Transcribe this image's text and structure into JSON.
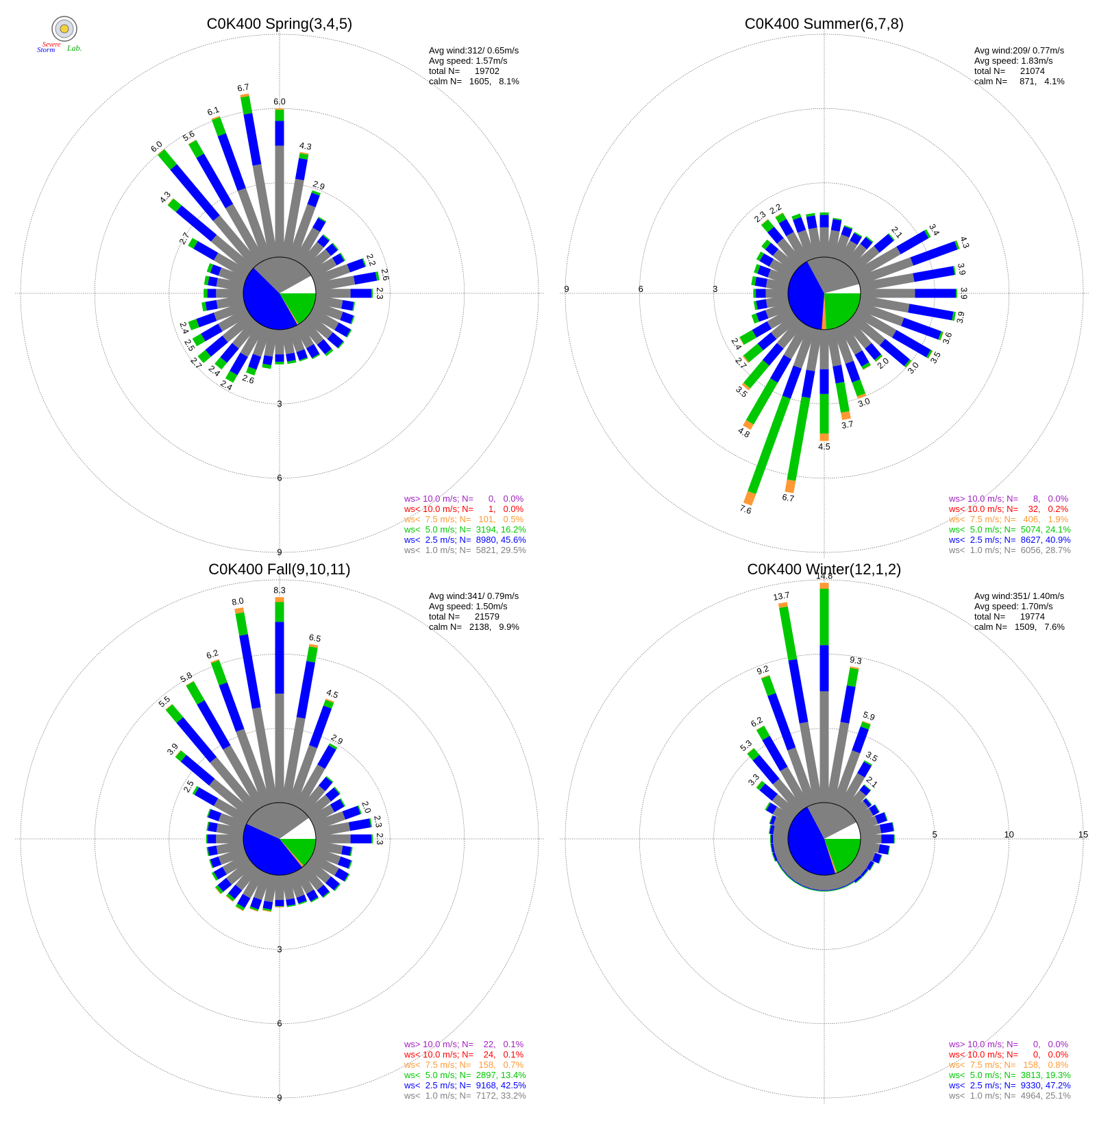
{
  "colors": {
    "calm": "#808080",
    "lt1": "#808080",
    "lt2_5": "#0000ff",
    "lt5": "#00c800",
    "lt7_5": "#ff9933",
    "lt10": "#ff0000",
    "gt10": "#a020c0",
    "calm_fill": "#ffffff"
  },
  "logo": {
    "text_1": "Severe",
    "text_2": "Storm",
    "text_3": "Lab.",
    "icon": "emblem-icon"
  },
  "chart_data": [
    {
      "type": "windrose",
      "title": "C0K400 Spring(3,4,5)",
      "stats": [
        "Avg wind:312/ 0.65m/s",
        "Avg speed: 1.57m/s",
        "total N=      19702",
        "calm N=   1605,   8.1%"
      ],
      "rmax": 9,
      "ring_values": [
        3,
        6,
        9
      ],
      "ring_labels": [
        "3",
        "6",
        "9"
      ],
      "ring_label_side": "south",
      "pie_fractions": {
        "lt1": 0.295,
        "lt2_5": 0.456,
        "lt5": 0.162,
        "lt7_5": 0.005,
        "lt10": 0.0005,
        "gt10": 0.0,
        "calm": 0.081
      },
      "directions_deg": [
        0,
        10,
        20,
        30,
        40,
        50,
        60,
        70,
        80,
        90,
        100,
        110,
        120,
        130,
        140,
        150,
        160,
        170,
        180,
        190,
        200,
        210,
        220,
        230,
        240,
        250,
        260,
        270,
        280,
        290,
        300,
        310,
        320,
        330,
        340,
        350
      ],
      "totals": [
        6.0,
        4.3,
        2.9,
        2.0,
        1.5,
        1.5,
        1.5,
        2.2,
        2.6,
        2.3,
        1.6,
        1.7,
        1.8,
        1.8,
        1.7,
        1.5,
        1.4,
        1.4,
        1.4,
        1.6,
        2.0,
        2.6,
        2.4,
        2.7,
        2.5,
        2.4,
        1.7,
        1.6,
        1.6,
        1.6,
        2.7,
        4.3,
        6.0,
        5.6,
        6.1,
        6.7
      ],
      "lt1": [
        4.5,
        3.2,
        2.3,
        1.5,
        1.1,
        1.1,
        1.1,
        1.5,
        1.6,
        1.4,
        1.1,
        1.2,
        1.2,
        1.2,
        1.1,
        1.0,
        1.0,
        1.0,
        1.0,
        1.1,
        1.2,
        1.4,
        1.3,
        1.4,
        1.3,
        1.3,
        1.1,
        1.1,
        1.1,
        1.1,
        1.5,
        2.0,
        2.5,
        2.6,
        3.0,
        3.8
      ],
      "lt2_5": [
        5.5,
        4.05,
        2.8,
        1.95,
        1.45,
        1.45,
        1.45,
        2.15,
        2.5,
        2.25,
        1.55,
        1.65,
        1.75,
        1.75,
        1.6,
        1.45,
        1.35,
        1.3,
        1.3,
        1.45,
        1.75,
        2.25,
        2.05,
        2.3,
        2.1,
        2.05,
        1.55,
        1.45,
        1.45,
        1.45,
        2.45,
        3.85,
        5.2,
        4.95,
        5.35,
        5.9
      ],
      "lt5": [
        5.95,
        4.25,
        2.9,
        2.0,
        1.5,
        1.5,
        1.5,
        2.2,
        2.6,
        2.3,
        1.6,
        1.7,
        1.8,
        1.8,
        1.7,
        1.5,
        1.4,
        1.4,
        1.4,
        1.6,
        2.0,
        2.6,
        2.4,
        2.7,
        2.5,
        2.4,
        1.7,
        1.6,
        1.6,
        1.6,
        2.7,
        4.28,
        5.98,
        5.58,
        6.05,
        6.6
      ],
      "labels": [
        {
          "i": 0,
          "v": "6.0"
        },
        {
          "i": 1,
          "v": "4.3"
        },
        {
          "i": 2,
          "v": "2.9"
        },
        {
          "i": 7,
          "v": "2.2"
        },
        {
          "i": 8,
          "v": "2.6"
        },
        {
          "i": 9,
          "v": "2.3"
        },
        {
          "i": 20,
          "v": "2.6"
        },
        {
          "i": 21,
          "v": "2.4"
        },
        {
          "i": 22,
          "v": "2.4"
        },
        {
          "i": 23,
          "v": "2.7"
        },
        {
          "i": 24,
          "v": "2.5"
        },
        {
          "i": 25,
          "v": "2.4"
        },
        {
          "i": 30,
          "v": "2.7"
        },
        {
          "i": 31,
          "v": "4.3"
        },
        {
          "i": 32,
          "v": "6.0"
        },
        {
          "i": 33,
          "v": "5.6"
        },
        {
          "i": 34,
          "v": "6.1"
        },
        {
          "i": 35,
          "v": "6.7"
        }
      ],
      "legend": [
        {
          "cls": "gt10",
          "text": "ws> 10.0 m/s; N=      0,   0.0%"
        },
        {
          "cls": "lt10",
          "text": "ws< 10.0 m/s; N=      1,   0.0%"
        },
        {
          "cls": "lt7_5",
          "text": "ws<  7.5 m/s; N=   101,   0.5%"
        },
        {
          "cls": "lt5",
          "text": "ws<  5.0 m/s; N=  3194, 16.2%"
        },
        {
          "cls": "lt2_5",
          "text": "ws<  2.5 m/s; N=  8980, 45.6%"
        },
        {
          "cls": "lt1",
          "text": "ws<  1.0 m/s; N=  5821, 29.5%"
        }
      ]
    },
    {
      "type": "windrose",
      "title": "C0K400 Summer(6,7,8)",
      "stats": [
        "Avg wind:209/ 0.77m/s",
        "Avg speed: 1.83m/s",
        "total N=      21074",
        "calm N=     871,   4.1%"
      ],
      "rmax": 9,
      "ring_values": [
        3,
        6,
        9
      ],
      "ring_labels": [
        "3",
        "6",
        "9"
      ],
      "ring_label_side": "west",
      "pie_fractions": {
        "lt1": 0.287,
        "lt2_5": 0.409,
        "lt5": 0.241,
        "lt7_5": 0.019,
        "lt10": 0.002,
        "gt10": 0.0,
        "calm": 0.041
      },
      "directions_deg": [
        0,
        10,
        20,
        30,
        40,
        50,
        60,
        70,
        80,
        90,
        100,
        110,
        120,
        130,
        140,
        150,
        160,
        170,
        180,
        190,
        200,
        210,
        220,
        230,
        240,
        250,
        260,
        270,
        280,
        290,
        300,
        310,
        320,
        330,
        340,
        350
      ],
      "totals": [
        1.8,
        1.6,
        1.4,
        1.3,
        1.4,
        2.1,
        3.4,
        4.3,
        3.9,
        3.9,
        3.9,
        3.6,
        3.5,
        3.0,
        2.0,
        2.0,
        3.0,
        3.7,
        4.5,
        6.7,
        7.6,
        4.8,
        3.5,
        2.7,
        2.4,
        1.6,
        1.4,
        1.4,
        1.5,
        1.5,
        1.6,
        1.7,
        2.3,
        2.2,
        1.9,
        1.8
      ],
      "lt1": [
        1.2,
        1.1,
        1.0,
        0.9,
        1.0,
        1.3,
        2.0,
        2.3,
        2.2,
        2.2,
        2.0,
        1.9,
        1.8,
        1.6,
        1.3,
        1.3,
        1.5,
        1.5,
        1.6,
        1.7,
        1.7,
        1.5,
        1.3,
        1.2,
        1.1,
        1.0,
        0.9,
        0.9,
        0.9,
        0.9,
        1.0,
        1.1,
        1.3,
        1.3,
        1.2,
        1.2
      ],
      "lt2_5": [
        1.7,
        1.55,
        1.35,
        1.25,
        1.35,
        2.05,
        3.3,
        4.2,
        3.85,
        3.85,
        3.8,
        3.5,
        3.4,
        2.9,
        1.9,
        1.85,
        2.3,
        2.2,
        2.6,
        2.8,
        3.0,
        2.6,
        2.2,
        1.9,
        1.8,
        1.4,
        1.3,
        1.3,
        1.35,
        1.35,
        1.45,
        1.5,
        1.9,
        1.9,
        1.75,
        1.7
      ],
      "lt5": [
        1.8,
        1.6,
        1.4,
        1.3,
        1.4,
        2.1,
        3.4,
        4.28,
        3.9,
        3.9,
        3.9,
        3.58,
        3.48,
        2.98,
        1.98,
        1.98,
        2.9,
        3.4,
        4.2,
        6.2,
        7.1,
        4.55,
        3.4,
        2.65,
        2.38,
        1.6,
        1.4,
        1.4,
        1.5,
        1.5,
        1.6,
        1.7,
        2.28,
        2.18,
        1.9,
        1.8
      ],
      "labels": [
        {
          "i": 5,
          "v": "2.1"
        },
        {
          "i": 6,
          "v": "3.4"
        },
        {
          "i": 7,
          "v": "4.3"
        },
        {
          "i": 8,
          "v": "3.9"
        },
        {
          "i": 9,
          "v": "3.9"
        },
        {
          "i": 10,
          "v": "3.9"
        },
        {
          "i": 11,
          "v": "3.6"
        },
        {
          "i": 12,
          "v": "3.5"
        },
        {
          "i": 13,
          "v": "3.0"
        },
        {
          "i": 14,
          "v": "2.0"
        },
        {
          "i": 16,
          "v": "3.0"
        },
        {
          "i": 17,
          "v": "3.7"
        },
        {
          "i": 18,
          "v": "4.5"
        },
        {
          "i": 19,
          "v": "6.7"
        },
        {
          "i": 20,
          "v": "7.6"
        },
        {
          "i": 21,
          "v": "4.8"
        },
        {
          "i": 22,
          "v": "3.5"
        },
        {
          "i": 23,
          "v": "2.7"
        },
        {
          "i": 24,
          "v": "2.4"
        },
        {
          "i": 32,
          "v": "2.3"
        },
        {
          "i": 33,
          "v": "2.2"
        }
      ],
      "legend": [
        {
          "cls": "gt10",
          "text": "ws> 10.0 m/s; N=      8,   0.0%"
        },
        {
          "cls": "lt10",
          "text": "ws< 10.0 m/s; N=    32,   0.2%"
        },
        {
          "cls": "lt7_5",
          "text": "ws<  7.5 m/s; N=   406,   1.9%"
        },
        {
          "cls": "lt5",
          "text": "ws<  5.0 m/s; N=  5074, 24.1%"
        },
        {
          "cls": "lt2_5",
          "text": "ws<  2.5 m/s; N=  8627, 40.9%"
        },
        {
          "cls": "lt1",
          "text": "ws<  1.0 m/s; N=  6056, 28.7%"
        }
      ]
    },
    {
      "type": "windrose",
      "title": "C0K400 Fall(9,10,11)",
      "stats": [
        "Avg wind:341/ 0.79m/s",
        "Avg speed: 1.50m/s",
        "total N=      21579",
        "calm N=   2138,   9.9%"
      ],
      "rmax": 9,
      "ring_values": [
        3,
        6,
        9
      ],
      "ring_labels": [
        "3",
        "6",
        "9"
      ],
      "ring_label_side": "south",
      "pie_fractions": {
        "lt1": 0.332,
        "lt2_5": 0.425,
        "lt5": 0.134,
        "lt7_5": 0.007,
        "lt10": 0.001,
        "gt10": 0.001,
        "calm": 0.099
      },
      "directions_deg": [
        0,
        10,
        20,
        30,
        40,
        50,
        60,
        70,
        80,
        90,
        100,
        110,
        120,
        130,
        140,
        150,
        160,
        170,
        180,
        190,
        200,
        210,
        220,
        230,
        240,
        250,
        260,
        270,
        280,
        290,
        300,
        310,
        320,
        330,
        340,
        350
      ],
      "totals": [
        8.3,
        6.5,
        4.5,
        2.9,
        1.7,
        1.6,
        1.5,
        2.0,
        2.3,
        2.3,
        1.5,
        1.6,
        1.7,
        1.6,
        1.5,
        1.4,
        1.3,
        1.3,
        1.3,
        1.5,
        1.6,
        1.8,
        1.7,
        1.8,
        1.6,
        1.5,
        1.5,
        1.5,
        1.5,
        1.6,
        2.5,
        3.9,
        5.5,
        5.8,
        6.2,
        8.0
      ],
      "lt1": [
        4.4,
        3.5,
        2.5,
        1.9,
        1.2,
        1.1,
        1.0,
        1.3,
        1.4,
        1.4,
        1.1,
        1.1,
        1.2,
        1.1,
        1.1,
        1.0,
        1.0,
        1.0,
        1.0,
        1.1,
        1.1,
        1.2,
        1.1,
        1.2,
        1.1,
        1.1,
        1.1,
        1.1,
        1.1,
        1.1,
        1.5,
        2.1,
        2.7,
        2.8,
        3.2,
        3.9
      ],
      "lt2_5": [
        7.3,
        5.8,
        4.2,
        2.8,
        1.65,
        1.55,
        1.45,
        1.95,
        2.25,
        2.25,
        1.45,
        1.55,
        1.65,
        1.55,
        1.45,
        1.35,
        1.25,
        1.25,
        1.25,
        1.4,
        1.5,
        1.65,
        1.55,
        1.65,
        1.5,
        1.45,
        1.45,
        1.45,
        1.45,
        1.55,
        2.4,
        3.6,
        4.8,
        4.9,
        5.2,
        6.9
      ],
      "lt5": [
        8.1,
        6.4,
        4.45,
        2.9,
        1.7,
        1.6,
        1.5,
        2.0,
        2.3,
        2.3,
        1.5,
        1.6,
        1.7,
        1.6,
        1.5,
        1.4,
        1.3,
        1.3,
        1.27,
        1.47,
        1.57,
        1.77,
        1.67,
        1.77,
        1.6,
        1.5,
        1.5,
        1.5,
        1.5,
        1.6,
        2.5,
        3.88,
        5.48,
        5.78,
        6.15,
        7.8
      ],
      "labels": [
        {
          "i": 0,
          "v": "8.3"
        },
        {
          "i": 1,
          "v": "6.5"
        },
        {
          "i": 2,
          "v": "4.5"
        },
        {
          "i": 3,
          "v": "2.9"
        },
        {
          "i": 7,
          "v": "2.0"
        },
        {
          "i": 8,
          "v": "2.3"
        },
        {
          "i": 9,
          "v": "2.3"
        },
        {
          "i": 30,
          "v": "2.5"
        },
        {
          "i": 31,
          "v": "3.9"
        },
        {
          "i": 32,
          "v": "5.5"
        },
        {
          "i": 33,
          "v": "5.8"
        },
        {
          "i": 34,
          "v": "6.2"
        },
        {
          "i": 35,
          "v": "8.0"
        }
      ],
      "legend": [
        {
          "cls": "gt10",
          "text": "ws> 10.0 m/s; N=    22,   0.1%"
        },
        {
          "cls": "lt10",
          "text": "ws< 10.0 m/s; N=    24,   0.1%"
        },
        {
          "cls": "lt7_5",
          "text": "ws<  7.5 m/s; N=   158,   0.7%"
        },
        {
          "cls": "lt5",
          "text": "ws<  5.0 m/s; N=  2897, 13.4%"
        },
        {
          "cls": "lt2_5",
          "text": "ws<  2.5 m/s; N=  9168, 42.5%"
        },
        {
          "cls": "lt1",
          "text": "ws<  1.0 m/s; N=  7172, 33.2%"
        }
      ]
    },
    {
      "type": "windrose",
      "title": "C0K400 Winter(12,1,2)",
      "stats": [
        "Avg wind:351/ 1.40m/s",
        "Avg speed: 1.70m/s",
        "total N=      19774",
        "calm N=   1509,   7.6%"
      ],
      "rmax": 15,
      "ring_values": [
        5,
        10,
        15
      ],
      "ring_labels": [
        "5",
        "10",
        "15"
      ],
      "ring_label_side": "east",
      "pie_fractions": {
        "lt1": 0.251,
        "lt2_5": 0.472,
        "lt5": 0.193,
        "lt7_5": 0.008,
        "lt10": 0.0,
        "gt10": 0.0,
        "calm": 0.076
      },
      "directions_deg": [
        0,
        10,
        20,
        30,
        40,
        50,
        60,
        70,
        80,
        90,
        100,
        110,
        120,
        130,
        140,
        150,
        160,
        170,
        180,
        190,
        200,
        210,
        220,
        230,
        240,
        250,
        260,
        270,
        280,
        290,
        300,
        310,
        320,
        330,
        340,
        350
      ],
      "totals": [
        14.8,
        9.3,
        5.9,
        3.5,
        2.1,
        1.5,
        1.7,
        2.0,
        2.3,
        2.3,
        2.0,
        1.6,
        1.3,
        1.2,
        1.2,
        1.1,
        1.1,
        1.1,
        1.1,
        1.1,
        1.1,
        1.1,
        1.1,
        1.1,
        1.1,
        1.2,
        1.2,
        1.2,
        1.3,
        1.4,
        2.0,
        3.3,
        5.3,
        6.2,
        9.2,
        13.7
      ],
      "lt1": [
        7.5,
        5.5,
        3.8,
        2.5,
        1.6,
        1.2,
        1.2,
        1.3,
        1.4,
        1.4,
        1.3,
        1.1,
        1.0,
        1.0,
        1.0,
        1.0,
        1.0,
        1.0,
        1.0,
        1.0,
        1.0,
        1.0,
        1.0,
        1.0,
        1.0,
        1.0,
        1.0,
        1.0,
        1.0,
        1.1,
        1.4,
        1.9,
        2.6,
        3.0,
        4.0,
        5.5
      ],
      "lt2_5": [
        10.6,
        8.0,
        5.5,
        3.4,
        2.05,
        1.45,
        1.65,
        1.95,
        2.25,
        2.25,
        1.95,
        1.55,
        1.25,
        1.15,
        1.15,
        1.05,
        1.05,
        1.05,
        1.05,
        1.05,
        1.05,
        1.05,
        1.05,
        1.05,
        1.05,
        1.15,
        1.15,
        1.15,
        1.25,
        1.35,
        1.9,
        3.0,
        4.7,
        5.4,
        7.9,
        9.8
      ],
      "lt5": [
        14.4,
        9.2,
        5.85,
        3.5,
        2.1,
        1.5,
        1.7,
        2.0,
        2.3,
        2.3,
        2.0,
        1.6,
        1.3,
        1.2,
        1.2,
        1.1,
        1.1,
        1.1,
        1.1,
        1.1,
        1.1,
        1.1,
        1.1,
        1.1,
        1.1,
        1.2,
        1.2,
        1.2,
        1.3,
        1.4,
        2.0,
        3.28,
        5.28,
        6.18,
        9.15,
        13.4
      ],
      "labels": [
        {
          "i": 0,
          "v": "14.8"
        },
        {
          "i": 1,
          "v": "9.3"
        },
        {
          "i": 2,
          "v": "5.9"
        },
        {
          "i": 3,
          "v": "3.5"
        },
        {
          "i": 4,
          "v": "2.1"
        },
        {
          "i": 31,
          "v": "3.3"
        },
        {
          "i": 32,
          "v": "5.3"
        },
        {
          "i": 33,
          "v": "6.2"
        },
        {
          "i": 34,
          "v": "9.2"
        },
        {
          "i": 35,
          "v": "13.7"
        }
      ],
      "legend": [
        {
          "cls": "gt10",
          "text": "ws> 10.0 m/s; N=      0,   0.0%"
        },
        {
          "cls": "lt10",
          "text": "ws< 10.0 m/s; N=      0,   0.0%"
        },
        {
          "cls": "lt7_5",
          "text": "ws<  7.5 m/s; N=   158,   0.8%"
        },
        {
          "cls": "lt5",
          "text": "ws<  5.0 m/s; N=  3813, 19.3%"
        },
        {
          "cls": "lt2_5",
          "text": "ws<  2.5 m/s; N=  9330, 47.2%"
        },
        {
          "cls": "lt1",
          "text": "ws<  1.0 m/s; N=  4964, 25.1%"
        }
      ]
    }
  ]
}
